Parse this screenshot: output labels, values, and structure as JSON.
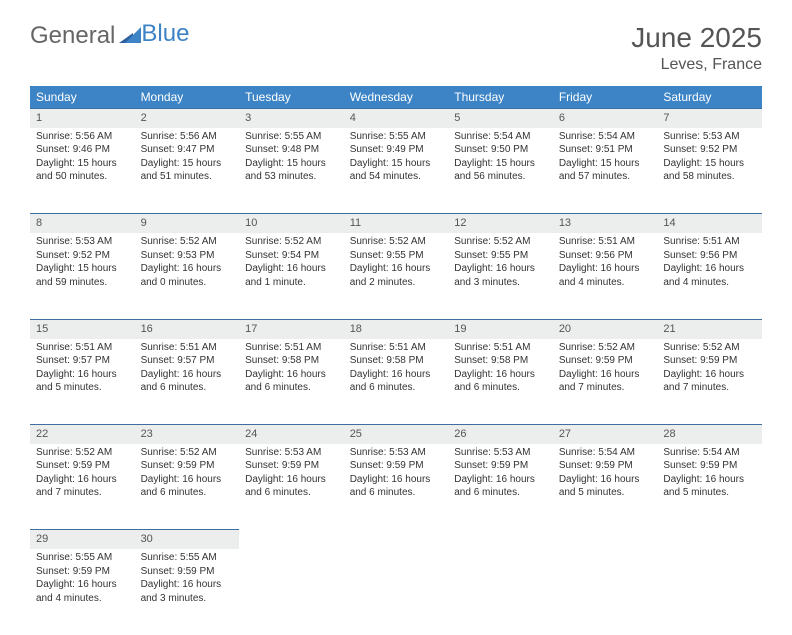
{
  "brand": {
    "part1": "General",
    "part2": "Blue"
  },
  "title": "June 2025",
  "location": "Leves, France",
  "colors": {
    "header_bg": "#3d84c6",
    "header_fg": "#ffffff",
    "daynum_bg": "#eceded",
    "rule": "#3d6ea0",
    "text": "#333333",
    "background": "#ffffff"
  },
  "typography": {
    "title_fontsize": 28,
    "location_fontsize": 16,
    "th_fontsize": 12,
    "cell_fontsize": 10
  },
  "weekdays": [
    "Sunday",
    "Monday",
    "Tuesday",
    "Wednesday",
    "Thursday",
    "Friday",
    "Saturday"
  ],
  "weeks": [
    [
      {
        "n": "1",
        "sr": "Sunrise: 5:56 AM",
        "ss": "Sunset: 9:46 PM",
        "d1": "Daylight: 15 hours",
        "d2": "and 50 minutes."
      },
      {
        "n": "2",
        "sr": "Sunrise: 5:56 AM",
        "ss": "Sunset: 9:47 PM",
        "d1": "Daylight: 15 hours",
        "d2": "and 51 minutes."
      },
      {
        "n": "3",
        "sr": "Sunrise: 5:55 AM",
        "ss": "Sunset: 9:48 PM",
        "d1": "Daylight: 15 hours",
        "d2": "and 53 minutes."
      },
      {
        "n": "4",
        "sr": "Sunrise: 5:55 AM",
        "ss": "Sunset: 9:49 PM",
        "d1": "Daylight: 15 hours",
        "d2": "and 54 minutes."
      },
      {
        "n": "5",
        "sr": "Sunrise: 5:54 AM",
        "ss": "Sunset: 9:50 PM",
        "d1": "Daylight: 15 hours",
        "d2": "and 56 minutes."
      },
      {
        "n": "6",
        "sr": "Sunrise: 5:54 AM",
        "ss": "Sunset: 9:51 PM",
        "d1": "Daylight: 15 hours",
        "d2": "and 57 minutes."
      },
      {
        "n": "7",
        "sr": "Sunrise: 5:53 AM",
        "ss": "Sunset: 9:52 PM",
        "d1": "Daylight: 15 hours",
        "d2": "and 58 minutes."
      }
    ],
    [
      {
        "n": "8",
        "sr": "Sunrise: 5:53 AM",
        "ss": "Sunset: 9:52 PM",
        "d1": "Daylight: 15 hours",
        "d2": "and 59 minutes."
      },
      {
        "n": "9",
        "sr": "Sunrise: 5:52 AM",
        "ss": "Sunset: 9:53 PM",
        "d1": "Daylight: 16 hours",
        "d2": "and 0 minutes."
      },
      {
        "n": "10",
        "sr": "Sunrise: 5:52 AM",
        "ss": "Sunset: 9:54 PM",
        "d1": "Daylight: 16 hours",
        "d2": "and 1 minute."
      },
      {
        "n": "11",
        "sr": "Sunrise: 5:52 AM",
        "ss": "Sunset: 9:55 PM",
        "d1": "Daylight: 16 hours",
        "d2": "and 2 minutes."
      },
      {
        "n": "12",
        "sr": "Sunrise: 5:52 AM",
        "ss": "Sunset: 9:55 PM",
        "d1": "Daylight: 16 hours",
        "d2": "and 3 minutes."
      },
      {
        "n": "13",
        "sr": "Sunrise: 5:51 AM",
        "ss": "Sunset: 9:56 PM",
        "d1": "Daylight: 16 hours",
        "d2": "and 4 minutes."
      },
      {
        "n": "14",
        "sr": "Sunrise: 5:51 AM",
        "ss": "Sunset: 9:56 PM",
        "d1": "Daylight: 16 hours",
        "d2": "and 4 minutes."
      }
    ],
    [
      {
        "n": "15",
        "sr": "Sunrise: 5:51 AM",
        "ss": "Sunset: 9:57 PM",
        "d1": "Daylight: 16 hours",
        "d2": "and 5 minutes."
      },
      {
        "n": "16",
        "sr": "Sunrise: 5:51 AM",
        "ss": "Sunset: 9:57 PM",
        "d1": "Daylight: 16 hours",
        "d2": "and 6 minutes."
      },
      {
        "n": "17",
        "sr": "Sunrise: 5:51 AM",
        "ss": "Sunset: 9:58 PM",
        "d1": "Daylight: 16 hours",
        "d2": "and 6 minutes."
      },
      {
        "n": "18",
        "sr": "Sunrise: 5:51 AM",
        "ss": "Sunset: 9:58 PM",
        "d1": "Daylight: 16 hours",
        "d2": "and 6 minutes."
      },
      {
        "n": "19",
        "sr": "Sunrise: 5:51 AM",
        "ss": "Sunset: 9:58 PM",
        "d1": "Daylight: 16 hours",
        "d2": "and 6 minutes."
      },
      {
        "n": "20",
        "sr": "Sunrise: 5:52 AM",
        "ss": "Sunset: 9:59 PM",
        "d1": "Daylight: 16 hours",
        "d2": "and 7 minutes."
      },
      {
        "n": "21",
        "sr": "Sunrise: 5:52 AM",
        "ss": "Sunset: 9:59 PM",
        "d1": "Daylight: 16 hours",
        "d2": "and 7 minutes."
      }
    ],
    [
      {
        "n": "22",
        "sr": "Sunrise: 5:52 AM",
        "ss": "Sunset: 9:59 PM",
        "d1": "Daylight: 16 hours",
        "d2": "and 7 minutes."
      },
      {
        "n": "23",
        "sr": "Sunrise: 5:52 AM",
        "ss": "Sunset: 9:59 PM",
        "d1": "Daylight: 16 hours",
        "d2": "and 6 minutes."
      },
      {
        "n": "24",
        "sr": "Sunrise: 5:53 AM",
        "ss": "Sunset: 9:59 PM",
        "d1": "Daylight: 16 hours",
        "d2": "and 6 minutes."
      },
      {
        "n": "25",
        "sr": "Sunrise: 5:53 AM",
        "ss": "Sunset: 9:59 PM",
        "d1": "Daylight: 16 hours",
        "d2": "and 6 minutes."
      },
      {
        "n": "26",
        "sr": "Sunrise: 5:53 AM",
        "ss": "Sunset: 9:59 PM",
        "d1": "Daylight: 16 hours",
        "d2": "and 6 minutes."
      },
      {
        "n": "27",
        "sr": "Sunrise: 5:54 AM",
        "ss": "Sunset: 9:59 PM",
        "d1": "Daylight: 16 hours",
        "d2": "and 5 minutes."
      },
      {
        "n": "28",
        "sr": "Sunrise: 5:54 AM",
        "ss": "Sunset: 9:59 PM",
        "d1": "Daylight: 16 hours",
        "d2": "and 5 minutes."
      }
    ],
    [
      {
        "n": "29",
        "sr": "Sunrise: 5:55 AM",
        "ss": "Sunset: 9:59 PM",
        "d1": "Daylight: 16 hours",
        "d2": "and 4 minutes."
      },
      {
        "n": "30",
        "sr": "Sunrise: 5:55 AM",
        "ss": "Sunset: 9:59 PM",
        "d1": "Daylight: 16 hours",
        "d2": "and 3 minutes."
      },
      null,
      null,
      null,
      null,
      null
    ]
  ]
}
